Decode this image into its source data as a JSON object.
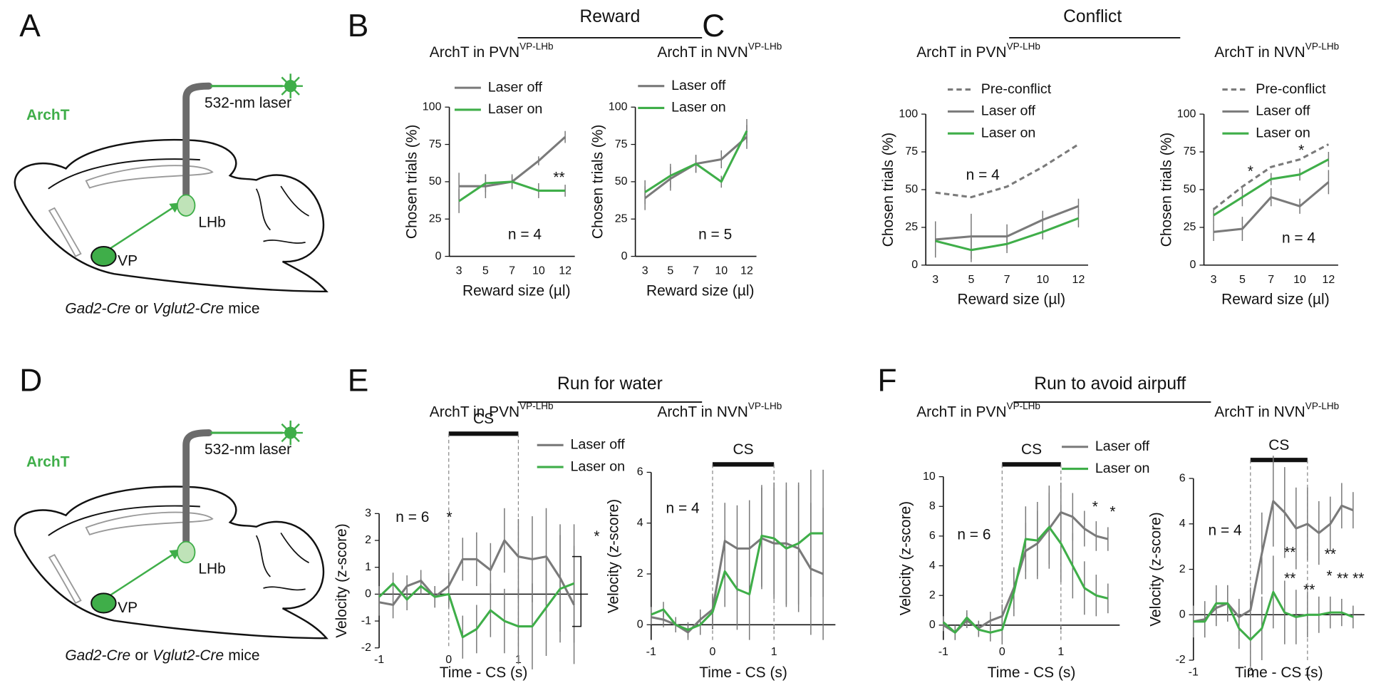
{
  "panel_labels": [
    "A",
    "B",
    "C",
    "D",
    "E",
    "F"
  ],
  "headers": [
    "Reward",
    "Conflict",
    "Run for water",
    "Run to avoid airpuff"
  ],
  "diagrams": [
    {
      "tag": "ArchT",
      "laser": "532-nm laser",
      "target": "LHb",
      "source": "VP",
      "caption": [
        "Gad2-Cre",
        "or",
        "Vglut2-Cre",
        "mice"
      ]
    },
    {
      "tag": "ArchT",
      "laser": "532-nm laser",
      "target": "LHb",
      "source": "VP",
      "caption": [
        "Gad2-Cre",
        "or",
        "Vglut2-Cre",
        "mice"
      ]
    }
  ],
  "chart_data": [
    {
      "type": "line",
      "title": "ArchT in PVN",
      "title_sup": "VP-LHb",
      "ylabel": "Chosen trials (%)",
      "xlabel": "Reward size (µl)",
      "categories": [
        "3",
        "5",
        "7",
        "10",
        "12"
      ],
      "ylim": [
        0,
        100
      ],
      "yticks": [
        0,
        25,
        50,
        75,
        100
      ],
      "series": [
        {
          "name": "Laser off",
          "color": "#7a7a7a",
          "values": [
            47,
            47,
            50,
            64,
            80
          ],
          "errors": [
            9,
            8,
            5,
            3,
            4
          ]
        },
        {
          "name": "Laser on",
          "color": "#3fae49",
          "values": [
            37,
            49,
            50,
            44,
            44
          ],
          "errors": [
            8,
            6,
            4,
            5,
            4
          ]
        }
      ],
      "annotations": [
        "**",
        "n = 4"
      ]
    },
    {
      "type": "line",
      "title": "ArchT in NVN",
      "title_sup": "VP-LHb",
      "ylabel": "Chosen trials (%)",
      "xlabel": "Reward size (µl)",
      "categories": [
        "3",
        "5",
        "7",
        "10",
        "12"
      ],
      "ylim": [
        0,
        100
      ],
      "yticks": [
        0,
        25,
        50,
        75,
        100
      ],
      "series": [
        {
          "name": "Laser off",
          "color": "#7a7a7a",
          "values": [
            39,
            52,
            62,
            65,
            80
          ],
          "errors": [
            8,
            8,
            6,
            6,
            8
          ]
        },
        {
          "name": "Laser on",
          "color": "#3fae49",
          "values": [
            43,
            54,
            62,
            50,
            84
          ],
          "errors": [
            8,
            8,
            6,
            4,
            8
          ]
        }
      ],
      "annotations": [
        "n = 5"
      ]
    },
    {
      "type": "line",
      "title": "ArchT in PVN",
      "title_sup": "VP-LHb",
      "ylabel": "Chosen trials (%)",
      "xlabel": "Reward size (µl)",
      "categories": [
        "3",
        "5",
        "7",
        "10",
        "12"
      ],
      "ylim": [
        0,
        100
      ],
      "yticks": [
        0,
        25,
        50,
        75,
        100
      ],
      "series": [
        {
          "name": "Pre-conflict",
          "color": "#7a7a7a",
          "dashed": true,
          "values": [
            48,
            45,
            52,
            65,
            80
          ]
        },
        {
          "name": "Laser off",
          "color": "#7a7a7a",
          "values": [
            17,
            19,
            19,
            30,
            39
          ],
          "errors": [
            12,
            15,
            8,
            6,
            5
          ]
        },
        {
          "name": "Laser on",
          "color": "#3fae49",
          "values": [
            16,
            10,
            14,
            22,
            31
          ],
          "errors": [
            8,
            8,
            6,
            5,
            6
          ]
        }
      ],
      "annotations": [
        "n = 4"
      ]
    },
    {
      "type": "line",
      "title": "ArchT in NVN",
      "title_sup": "VP-LHb",
      "ylabel": "Chosen trials (%)",
      "xlabel": "Reward size (µl)",
      "categories": [
        "3",
        "5",
        "7",
        "10",
        "12"
      ],
      "ylim": [
        0,
        100
      ],
      "yticks": [
        0,
        25,
        50,
        75,
        100
      ],
      "series": [
        {
          "name": "Pre-conflict",
          "color": "#7a7a7a",
          "dashed": true,
          "values": [
            37,
            52,
            65,
            70,
            80
          ]
        },
        {
          "name": "Laser off",
          "color": "#7a7a7a",
          "values": [
            22,
            24,
            45,
            39,
            55
          ],
          "errors": [
            6,
            8,
            6,
            5,
            8
          ]
        },
        {
          "name": "Laser on",
          "color": "#3fae49",
          "values": [
            33,
            45,
            57,
            60,
            70
          ],
          "errors": [
            5,
            6,
            4,
            4,
            5
          ]
        }
      ],
      "annotations": [
        "*",
        "*",
        "n = 4"
      ]
    },
    {
      "type": "line",
      "title": "ArchT in PVN",
      "title_sup": "VP-LHb",
      "ylabel": "Velocity (z-score)",
      "xlabel": "Time - CS (s)",
      "x": [
        -1,
        -0.8,
        -0.6,
        -0.4,
        -0.2,
        0,
        0.2,
        0.4,
        0.6,
        0.8,
        1,
        1.2,
        1.4,
        1.6,
        1.8
      ],
      "xlim": [
        -1,
        2
      ],
      "xticks": [
        -1,
        0,
        1
      ],
      "ylim": [
        -2,
        3
      ],
      "yticks": [
        -2,
        -1,
        0,
        1,
        2,
        3
      ],
      "cs_label": "CS",
      "cs_span": [
        0,
        1
      ],
      "series": [
        {
          "name": "Laser off",
          "color": "#7a7a7a",
          "values": [
            -0.3,
            -0.4,
            0.3,
            0.5,
            -0.1,
            0.3,
            1.3,
            1.3,
            0.9,
            2.0,
            1.4,
            1.3,
            1.4,
            0.6,
            -0.4
          ],
          "errors": [
            0.5,
            0.5,
            0.4,
            0.4,
            0.4,
            0.5,
            0.8,
            1.0,
            1.0,
            1.2,
            1.4,
            1.6,
            1.8,
            2.0,
            2.2
          ]
        },
        {
          "name": "Laser on",
          "color": "#3fae49",
          "values": [
            -0.1,
            0.4,
            -0.2,
            0.3,
            -0.1,
            0,
            -1.6,
            -1.3,
            -0.6,
            -1.0,
            -1.2,
            -1.2,
            -0.5,
            0.2,
            0.4
          ],
          "errors": [
            0.4,
            0.4,
            0.4,
            0.3,
            0.4,
            0.5,
            0.8,
            0.9,
            1.0,
            1.2,
            1.4,
            1.6,
            1.8,
            2.0,
            2.2
          ]
        }
      ],
      "annotations": [
        "n = 6",
        "*",
        "*"
      ]
    },
    {
      "type": "line",
      "title": "ArchT in NVN",
      "title_sup": "VP-LHb",
      "ylabel": "Velocity (z-score)",
      "xlabel": "Time - CS (s)",
      "x": [
        -1,
        -0.8,
        -0.6,
        -0.4,
        -0.2,
        0,
        0.2,
        0.4,
        0.6,
        0.8,
        1,
        1.2,
        1.4,
        1.6,
        1.8
      ],
      "xlim": [
        -1,
        2
      ],
      "xticks": [
        -1,
        0,
        1
      ],
      "ylim": [
        -0.6,
        6
      ],
      "yticks": [
        0,
        2,
        4,
        6
      ],
      "cs_label": "CS",
      "cs_span": [
        0,
        1
      ],
      "series": [
        {
          "color": "#7a7a7a",
          "values": [
            0.3,
            0.2,
            0,
            -0.3,
            0.2,
            0.6,
            3.3,
            3.0,
            3.0,
            3.4,
            3.2,
            3.2,
            3.0,
            2.2,
            2.0
          ],
          "errors": [
            0.3,
            0.3,
            0.3,
            0.3,
            0.4,
            0.6,
            1.5,
            1.7,
            1.9,
            2.0,
            2.2,
            2.4,
            2.5,
            2.6,
            2.6
          ]
        },
        {
          "color": "#3fae49",
          "values": [
            0.4,
            0.6,
            0,
            -0.2,
            0,
            0.5,
            2.1,
            1.4,
            1.2,
            3.5,
            3.4,
            3.0,
            3.2,
            3.6,
            3.6
          ],
          "errors": [
            0.3,
            0.3,
            0.3,
            0.3,
            0.4,
            0.6,
            1.4,
            1.6,
            1.8,
            2.0,
            2.2,
            2.3,
            2.4,
            2.5,
            2.5
          ]
        }
      ],
      "annotations": [
        "n = 4"
      ]
    },
    {
      "type": "line",
      "title": "ArchT in PVN",
      "title_sup": "VP-LHb",
      "ylabel": "Velocity (z-score)",
      "xlabel": "Time - CS (s)",
      "x": [
        -1,
        -0.8,
        -0.6,
        -0.4,
        -0.2,
        0,
        0.2,
        0.4,
        0.6,
        0.8,
        1,
        1.2,
        1.4,
        1.6,
        1.8
      ],
      "xlim": [
        -1,
        2
      ],
      "xticks": [
        -1,
        0,
        1
      ],
      "ylim": [
        -1,
        10
      ],
      "yticks": [
        0,
        2,
        4,
        6,
        8,
        10
      ],
      "cs_label": "CS",
      "cs_span": [
        0,
        1
      ],
      "series": [
        {
          "name": "Laser off",
          "color": "#7a7a7a",
          "values": [
            0,
            -0.5,
            0.3,
            -0.2,
            0.3,
            0.6,
            2.5,
            5.0,
            5.5,
            6.5,
            7.6,
            7.3,
            6.5,
            6.0,
            5.8
          ],
          "errors": [
            0.4,
            0.5,
            0.5,
            0.5,
            0.6,
            0.8,
            1.4,
            1.9,
            2.2,
            2.4,
            2.0,
            1.6,
            1.2,
            1.0,
            0.8
          ]
        },
        {
          "name": "Laser on",
          "color": "#3fae49",
          "values": [
            0.2,
            -0.5,
            0.5,
            -0.3,
            -0.5,
            -0.3,
            2.2,
            5.8,
            5.7,
            6.6,
            5.5,
            4.0,
            2.5,
            2.0,
            1.8
          ],
          "errors": [
            0.4,
            0.5,
            0.5,
            0.5,
            0.6,
            1.0,
            1.6,
            2.2,
            2.6,
            2.8,
            2.6,
            2.2,
            1.8,
            1.4,
            1.0
          ]
        }
      ],
      "annotations": [
        "n = 6",
        "*",
        "*"
      ]
    },
    {
      "type": "line",
      "title": "ArchT in NVN",
      "title_sup": "VP-LHb",
      "ylabel": "Velocity (z-score)",
      "xlabel": "Time - CS (s)",
      "x": [
        -1,
        -0.8,
        -0.6,
        -0.4,
        -0.2,
        0,
        0.2,
        0.4,
        0.6,
        0.8,
        1,
        1.2,
        1.4,
        1.6,
        1.8
      ],
      "xlim": [
        -1,
        2
      ],
      "xticks": [
        -1,
        0,
        1
      ],
      "ylim": [
        -2,
        6
      ],
      "yticks": [
        -2,
        0,
        2,
        4,
        6
      ],
      "cs_label": "CS",
      "cs_span": [
        0,
        1
      ],
      "series": [
        {
          "color": "#7a7a7a",
          "values": [
            -0.3,
            -0.2,
            0.3,
            0.5,
            -0.1,
            0.2,
            2.7,
            5.0,
            4.5,
            3.8,
            4.0,
            3.6,
            4.0,
            4.8,
            4.6
          ],
          "errors": [
            0.7,
            0.8,
            0.8,
            0.8,
            0.8,
            1.0,
            1.8,
            2.0,
            2.0,
            1.8,
            1.6,
            1.4,
            1.2,
            1.0,
            0.8
          ]
        },
        {
          "color": "#3fae49",
          "values": [
            -0.3,
            -0.3,
            0.5,
            0.5,
            -0.6,
            -1.1,
            -0.6,
            1.0,
            0.1,
            -0.1,
            0,
            0,
            0.1,
            0.1,
            -0.1
          ],
          "errors": [
            0.6,
            0.7,
            0.8,
            0.8,
            0.9,
            1.2,
            1.4,
            1.6,
            1.4,
            1.2,
            1.0,
            0.8,
            0.7,
            0.6,
            0.5
          ]
        }
      ],
      "annotations": [
        "n = 4",
        "**",
        "**",
        "**",
        "*",
        "**",
        "**",
        "**"
      ]
    }
  ]
}
